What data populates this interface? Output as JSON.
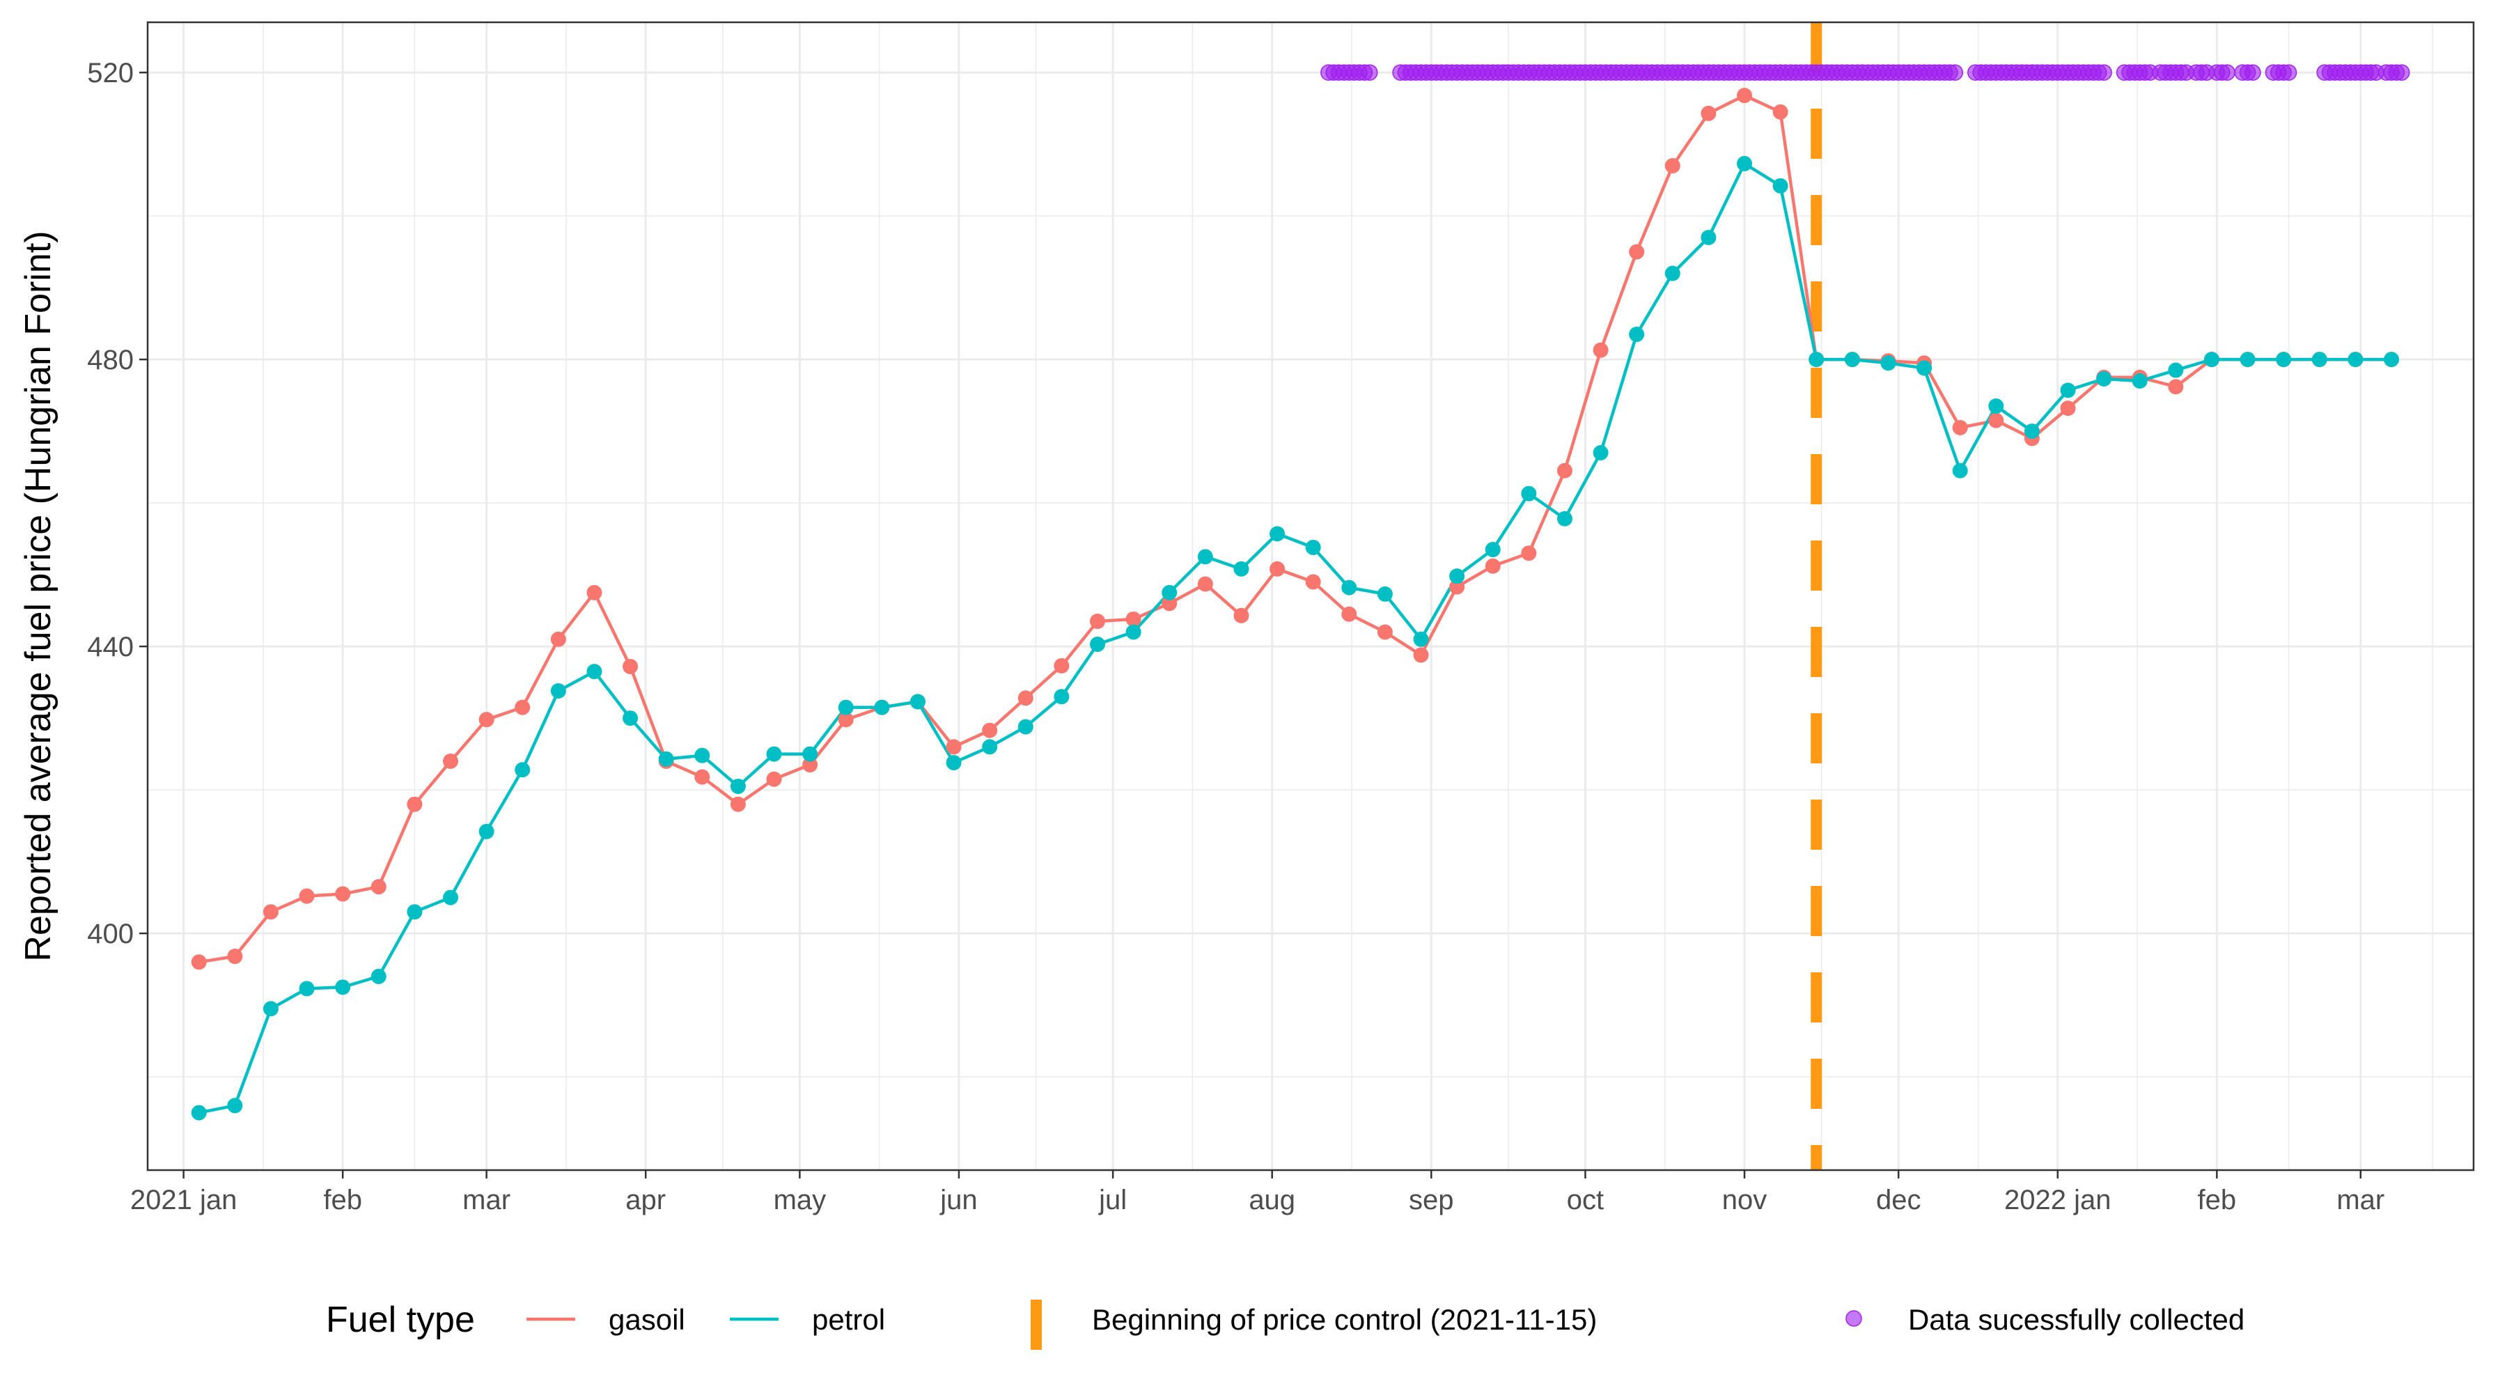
{
  "chart_data": {
    "type": "line",
    "title": "",
    "xlabel": "",
    "ylabel": "Reported average fuel price (Hungrian Forint)",
    "ylim": [
      367,
      527
    ],
    "xlim": [
      "2020-12-25",
      "2022-03-23"
    ],
    "y_ticks": [
      400,
      440,
      480,
      520
    ],
    "x_ticks": [
      {
        "date": "2021-01-01",
        "label": "2021 jan"
      },
      {
        "date": "2021-02-01",
        "label": "feb"
      },
      {
        "date": "2021-03-01",
        "label": "mar"
      },
      {
        "date": "2021-04-01",
        "label": "apr"
      },
      {
        "date": "2021-05-01",
        "label": "may"
      },
      {
        "date": "2021-06-01",
        "label": "jun"
      },
      {
        "date": "2021-07-01",
        "label": "jul"
      },
      {
        "date": "2021-08-01",
        "label": "aug"
      },
      {
        "date": "2021-09-01",
        "label": "sep"
      },
      {
        "date": "2021-10-01",
        "label": "oct"
      },
      {
        "date": "2021-11-01",
        "label": "nov"
      },
      {
        "date": "2021-12-01",
        "label": "dec"
      },
      {
        "date": "2022-01-01",
        "label": "2022 jan"
      },
      {
        "date": "2022-02-01",
        "label": "feb"
      },
      {
        "date": "2022-03-01",
        "label": "mar"
      }
    ],
    "grid": true,
    "legend_placement": "bottom",
    "legend_title": "Fuel type",
    "x": [
      "2021-01-04",
      "2021-01-11",
      "2021-01-18",
      "2021-01-25",
      "2021-02-01",
      "2021-02-08",
      "2021-02-15",
      "2021-02-22",
      "2021-03-01",
      "2021-03-08",
      "2021-03-15",
      "2021-03-22",
      "2021-03-29",
      "2021-04-05",
      "2021-04-12",
      "2021-04-19",
      "2021-04-26",
      "2021-05-03",
      "2021-05-10",
      "2021-05-17",
      "2021-05-24",
      "2021-05-31",
      "2021-06-07",
      "2021-06-14",
      "2021-06-21",
      "2021-06-28",
      "2021-07-05",
      "2021-07-12",
      "2021-07-19",
      "2021-07-26",
      "2021-08-02",
      "2021-08-09",
      "2021-08-16",
      "2021-08-23",
      "2021-08-30",
      "2021-09-06",
      "2021-09-13",
      "2021-09-20",
      "2021-09-27",
      "2021-10-04",
      "2021-10-11",
      "2021-10-18",
      "2021-10-25",
      "2021-11-01",
      "2021-11-08",
      "2021-11-15",
      "2021-11-22",
      "2021-11-29",
      "2021-12-06",
      "2021-12-13",
      "2021-12-20",
      "2021-12-27",
      "2022-01-03",
      "2022-01-10",
      "2022-01-17",
      "2022-01-24",
      "2022-01-31",
      "2022-02-07",
      "2022-02-14",
      "2022-02-21",
      "2022-02-28",
      "2022-03-07"
    ],
    "series": [
      {
        "name": "gasoil",
        "color": "#F8766D",
        "values": [
          396,
          396.8,
          403,
          405.2,
          405.5,
          406.5,
          418,
          424,
          429.8,
          431.5,
          441,
          447.5,
          437.2,
          424,
          421.8,
          418,
          421.5,
          423.5,
          429.8,
          431.5,
          432.3,
          426,
          428.3,
          432.8,
          437.3,
          443.5,
          443.8,
          446,
          448.7,
          444.3,
          450.8,
          449,
          444.5,
          442,
          438.8,
          448.3,
          451.2,
          453,
          464.5,
          481.3,
          495,
          507,
          514.3,
          516.8,
          514.5,
          480,
          480,
          479.8,
          479.5,
          470.5,
          471.5,
          469,
          473.2,
          477.5,
          477.5,
          476.2,
          480,
          480,
          480,
          480,
          480,
          480
        ]
      },
      {
        "name": "petrol",
        "color": "#00BFC4",
        "values": [
          375,
          376,
          389.5,
          392.3,
          392.5,
          394,
          403,
          405,
          414.2,
          422.8,
          433.8,
          436.5,
          430,
          424.3,
          424.8,
          420.5,
          425,
          425,
          431.5,
          431.5,
          432.3,
          423.8,
          426,
          428.8,
          433,
          440.3,
          442,
          447.5,
          452.5,
          450.8,
          455.7,
          453.8,
          448.2,
          447.3,
          441,
          449.8,
          453.5,
          461.3,
          457.8,
          467,
          483.5,
          492,
          497,
          507.3,
          504.2,
          480,
          480,
          479.5,
          478.8,
          464.5,
          473.5,
          470,
          475.7,
          477.3,
          477,
          478.5,
          480,
          480,
          480,
          480,
          480,
          480
        ]
      }
    ],
    "price_control": {
      "date": "2021-11-15",
      "label": "Beginning of price control (2021-11-15)",
      "color": "#FF9914"
    },
    "collected": {
      "label": "Data sucessfully collected",
      "color": "#A020F0",
      "y": 520,
      "dates": [
        "2021-08-12",
        "2021-08-13",
        "2021-08-14",
        "2021-08-15",
        "2021-08-16",
        "2021-08-17",
        "2021-08-18",
        "2021-08-19",
        "2021-08-20",
        "2021-08-26",
        "2021-08-27",
        "2021-08-28",
        "2021-08-29",
        "2021-08-30",
        "2021-08-31",
        "2021-09-01",
        "2021-09-02",
        "2021-09-03",
        "2021-09-04",
        "2021-09-05",
        "2021-09-06",
        "2021-09-07",
        "2021-09-08",
        "2021-09-09",
        "2021-09-10",
        "2021-09-11",
        "2021-09-12",
        "2021-09-13",
        "2021-09-14",
        "2021-09-15",
        "2021-09-16",
        "2021-09-17",
        "2021-09-18",
        "2021-09-19",
        "2021-09-20",
        "2021-09-21",
        "2021-09-22",
        "2021-09-23",
        "2021-09-24",
        "2021-09-25",
        "2021-09-26",
        "2021-09-27",
        "2021-09-28",
        "2021-09-29",
        "2021-09-30",
        "2021-10-01",
        "2021-10-02",
        "2021-10-03",
        "2021-10-04",
        "2021-10-05",
        "2021-10-06",
        "2021-10-07",
        "2021-10-08",
        "2021-10-09",
        "2021-10-10",
        "2021-10-11",
        "2021-10-12",
        "2021-10-13",
        "2021-10-14",
        "2021-10-15",
        "2021-10-16",
        "2021-10-17",
        "2021-10-18",
        "2021-10-19",
        "2021-10-20",
        "2021-10-21",
        "2021-10-22",
        "2021-10-23",
        "2021-10-24",
        "2021-10-25",
        "2021-10-26",
        "2021-10-27",
        "2021-10-28",
        "2021-10-29",
        "2021-10-30",
        "2021-10-31",
        "2021-11-01",
        "2021-11-02",
        "2021-11-03",
        "2021-11-04",
        "2021-11-05",
        "2021-11-06",
        "2021-11-07",
        "2021-11-08",
        "2021-11-09",
        "2021-11-10",
        "2021-11-11",
        "2021-11-12",
        "2021-11-13",
        "2021-11-14",
        "2021-11-15",
        "2021-11-16",
        "2021-11-17",
        "2021-11-18",
        "2021-11-19",
        "2021-11-20",
        "2021-11-21",
        "2021-11-22",
        "2021-11-23",
        "2021-11-24",
        "2021-11-25",
        "2021-11-26",
        "2021-11-27",
        "2021-11-28",
        "2021-11-29",
        "2021-11-30",
        "2021-12-01",
        "2021-12-02",
        "2021-12-03",
        "2021-12-04",
        "2021-12-05",
        "2021-12-06",
        "2021-12-07",
        "2021-12-08",
        "2021-12-09",
        "2021-12-10",
        "2021-12-11",
        "2021-12-12",
        "2021-12-16",
        "2021-12-17",
        "2021-12-18",
        "2021-12-19",
        "2021-12-20",
        "2021-12-21",
        "2021-12-22",
        "2021-12-23",
        "2021-12-24",
        "2021-12-25",
        "2021-12-26",
        "2021-12-27",
        "2021-12-28",
        "2021-12-29",
        "2021-12-30",
        "2021-12-31",
        "2022-01-01",
        "2022-01-02",
        "2022-01-03",
        "2022-01-04",
        "2022-01-05",
        "2022-01-06",
        "2022-01-07",
        "2022-01-08",
        "2022-01-09",
        "2022-01-10",
        "2022-01-14",
        "2022-01-15",
        "2022-01-16",
        "2022-01-17",
        "2022-01-18",
        "2022-01-19",
        "2022-01-21",
        "2022-01-22",
        "2022-01-23",
        "2022-01-24",
        "2022-01-25",
        "2022-01-26",
        "2022-01-28",
        "2022-01-29",
        "2022-01-30",
        "2022-02-01",
        "2022-02-02",
        "2022-02-03",
        "2022-02-06",
        "2022-02-07",
        "2022-02-08",
        "2022-02-12",
        "2022-02-13",
        "2022-02-14",
        "2022-02-15",
        "2022-02-22",
        "2022-02-23",
        "2022-02-24",
        "2022-02-25",
        "2022-02-26",
        "2022-02-27",
        "2022-02-28",
        "2022-03-01",
        "2022-03-02",
        "2022-03-03",
        "2022-03-04",
        "2022-03-06",
        "2022-03-07",
        "2022-03-08",
        "2022-03-09"
      ]
    }
  }
}
